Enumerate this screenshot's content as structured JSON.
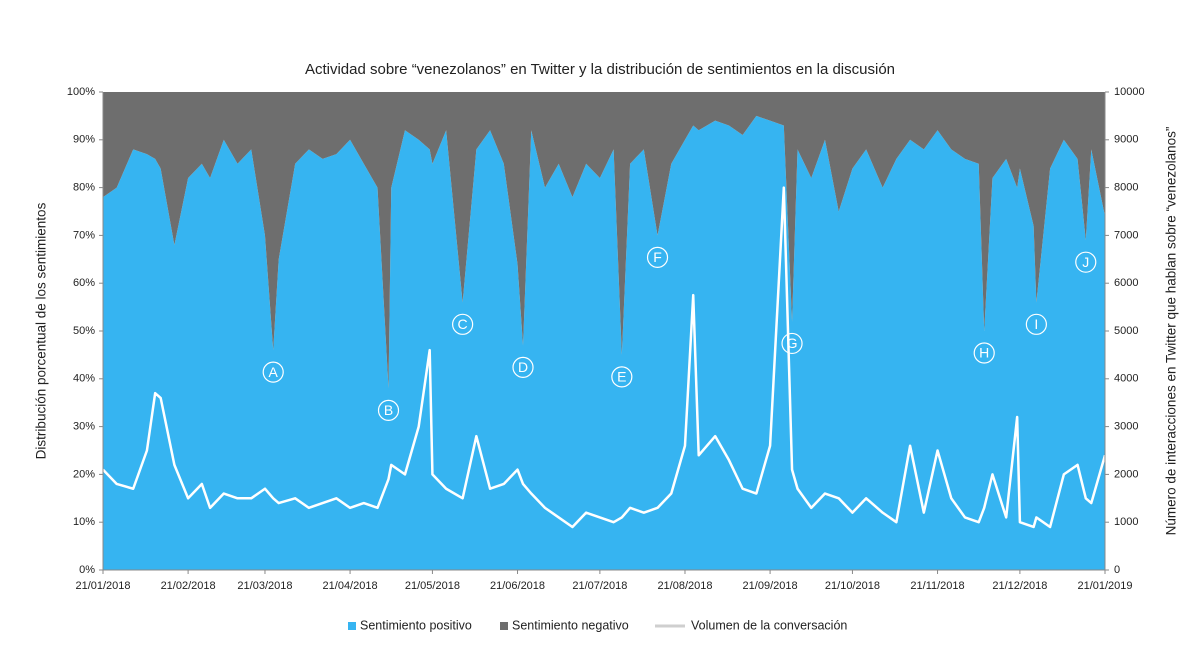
{
  "chart_data": {
    "type": "stacked-area-line",
    "title": "Actividad sobre “venezolanos” en Twitter y la distribución de sentimientos en la discusión",
    "y_label": "Distribución porcentual de los sentimientos",
    "y2_label": "Número de interacciones en Twitter que hablan sobre “venezolanos”",
    "x": [
      "2018-01-21",
      "2018-01-26",
      "2018-02-01",
      "2018-02-06",
      "2018-02-09",
      "2018-02-11",
      "2018-02-16",
      "2018-02-21",
      "2018-02-26",
      "2018-03-01",
      "2018-03-06",
      "2018-03-11",
      "2018-03-16",
      "2018-03-21",
      "2018-03-24",
      "2018-03-26",
      "2018-04-01",
      "2018-04-06",
      "2018-04-11",
      "2018-04-16",
      "2018-04-21",
      "2018-04-26",
      "2018-05-01",
      "2018-05-05",
      "2018-05-06",
      "2018-05-11",
      "2018-05-16",
      "2018-05-20",
      "2018-05-21",
      "2018-05-26",
      "2018-06-01",
      "2018-06-06",
      "2018-06-11",
      "2018-06-16",
      "2018-06-21",
      "2018-06-23",
      "2018-06-26",
      "2018-07-01",
      "2018-07-06",
      "2018-07-11",
      "2018-07-16",
      "2018-07-21",
      "2018-07-26",
      "2018-07-29",
      "2018-08-01",
      "2018-08-06",
      "2018-08-11",
      "2018-08-16",
      "2018-08-21",
      "2018-08-24",
      "2018-08-26",
      "2018-09-01",
      "2018-09-06",
      "2018-09-11",
      "2018-09-16",
      "2018-09-21",
      "2018-09-26",
      "2018-09-29",
      "2018-10-01",
      "2018-10-06",
      "2018-10-11",
      "2018-10-16",
      "2018-10-21",
      "2018-10-26",
      "2018-11-01",
      "2018-11-06",
      "2018-11-11",
      "2018-11-16",
      "2018-11-21",
      "2018-11-26",
      "2018-12-01",
      "2018-12-06",
      "2018-12-08",
      "2018-12-11",
      "2018-12-16",
      "2018-12-20",
      "2018-12-21",
      "2018-12-26",
      "2018-12-27",
      "2019-01-01",
      "2019-01-06",
      "2019-01-11",
      "2019-01-14",
      "2019-01-16",
      "2019-01-21"
    ],
    "series": [
      {
        "name": "Sentimiento positivo",
        "color": "#36b4f1",
        "values": [
          78,
          80,
          88,
          87,
          86,
          84,
          68,
          82,
          85,
          82,
          90,
          85,
          88,
          70,
          46,
          65,
          85,
          88,
          86,
          87,
          90,
          85,
          80,
          38,
          80,
          92,
          90,
          88,
          85,
          92,
          56,
          88,
          92,
          85,
          64,
          47,
          92,
          80,
          85,
          78,
          85,
          82,
          88,
          45,
          85,
          88,
          70,
          85,
          90,
          93,
          92,
          94,
          93,
          91,
          95,
          94,
          93,
          52,
          88,
          82,
          90,
          75,
          84,
          88,
          80,
          86,
          90,
          88,
          92,
          88,
          86,
          85,
          50,
          82,
          86,
          80,
          84,
          72,
          56,
          84,
          90,
          86,
          69,
          88,
          74
        ]
      },
      {
        "name": "Sentimiento negativo",
        "color": "#6e6e6e",
        "values": [
          22,
          20,
          12,
          13,
          14,
          16,
          32,
          18,
          15,
          18,
          10,
          15,
          12,
          30,
          54,
          35,
          15,
          12,
          14,
          13,
          10,
          15,
          20,
          62,
          20,
          8,
          10,
          12,
          15,
          8,
          44,
          12,
          8,
          15,
          36,
          53,
          8,
          20,
          15,
          22,
          15,
          18,
          12,
          55,
          15,
          12,
          30,
          15,
          10,
          7,
          8,
          6,
          7,
          9,
          5,
          6,
          7,
          48,
          12,
          18,
          10,
          25,
          16,
          12,
          20,
          14,
          10,
          12,
          8,
          12,
          14,
          15,
          50,
          18,
          14,
          20,
          16,
          28,
          44,
          16,
          10,
          14,
          31,
          12,
          26
        ]
      },
      {
        "name": "Volumen de la conversación",
        "color": "#ffffff",
        "axis": "y2",
        "values": [
          2100,
          1800,
          1700,
          2500,
          3700,
          3600,
          2200,
          1500,
          1800,
          1300,
          1600,
          1500,
          1500,
          1700,
          1500,
          1400,
          1500,
          1300,
          1400,
          1500,
          1300,
          1400,
          1300,
          1900,
          2200,
          2000,
          3000,
          4600,
          2000,
          1700,
          1500,
          2800,
          1700,
          1800,
          2100,
          1800,
          1600,
          1300,
          1100,
          900,
          1200,
          1100,
          1000,
          1100,
          1300,
          1200,
          1300,
          1600,
          2600,
          5750,
          2400,
          2800,
          2300,
          1700,
          1600,
          2600,
          8000,
          2100,
          1700,
          1300,
          1600,
          1500,
          1200,
          1500,
          1200,
          1000,
          2600,
          1200,
          2500,
          1500,
          1100,
          1000,
          1300,
          2000,
          1100,
          3200,
          1000,
          900,
          1100,
          900,
          2000,
          2200,
          1500,
          1400,
          2400
        ]
      }
    ],
    "xlim": [
      "2018-01-21",
      "2019-01-21"
    ],
    "xticks": [
      {
        "value": "2018-01-21",
        "label": "21/01/2018"
      },
      {
        "value": "2018-02-21",
        "label": "21/02/2018"
      },
      {
        "value": "2018-03-21",
        "label": "21/03/2018"
      },
      {
        "value": "2018-04-21",
        "label": "21/04/2018"
      },
      {
        "value": "2018-05-21",
        "label": "21/05/2018"
      },
      {
        "value": "2018-06-21",
        "label": "21/06/2018"
      },
      {
        "value": "2018-07-21",
        "label": "21/07/2018"
      },
      {
        "value": "2018-08-21",
        "label": "21/08/2018"
      },
      {
        "value": "2018-09-21",
        "label": "21/09/2018"
      },
      {
        "value": "2018-10-21",
        "label": "21/10/2018"
      },
      {
        "value": "2018-11-21",
        "label": "21/11/2018"
      },
      {
        "value": "2018-12-21",
        "label": "21/12/2018"
      },
      {
        "value": "2019-01-21",
        "label": "21/01/2019"
      }
    ],
    "ylim": [
      0,
      100
    ],
    "yticks": [
      {
        "value": 0,
        "label": "0%"
      },
      {
        "value": 10,
        "label": "10%"
      },
      {
        "value": 20,
        "label": "20%"
      },
      {
        "value": 30,
        "label": "30%"
      },
      {
        "value": 40,
        "label": "40%"
      },
      {
        "value": 50,
        "label": "50%"
      },
      {
        "value": 60,
        "label": "60%"
      },
      {
        "value": 70,
        "label": "70%"
      },
      {
        "value": 80,
        "label": "80%"
      },
      {
        "value": 90,
        "label": "90%"
      },
      {
        "value": 100,
        "label": "100%"
      }
    ],
    "y2lim": [
      0,
      10000
    ],
    "y2ticks": [
      0,
      1000,
      2000,
      3000,
      4000,
      5000,
      6000,
      7000,
      8000,
      9000,
      10000
    ],
    "annotations": [
      {
        "label": "A",
        "x": "2018-03-24"
      },
      {
        "label": "B",
        "x": "2018-05-05"
      },
      {
        "label": "C",
        "x": "2018-06-01"
      },
      {
        "label": "D",
        "x": "2018-06-23"
      },
      {
        "label": "E",
        "x": "2018-07-29"
      },
      {
        "label": "F",
        "x": "2018-08-11"
      },
      {
        "label": "G",
        "x": "2018-09-29"
      },
      {
        "label": "H",
        "x": "2018-12-08"
      },
      {
        "label": "I",
        "x": "2018-12-27"
      },
      {
        "label": "J",
        "x": "2019-01-14"
      }
    ]
  }
}
